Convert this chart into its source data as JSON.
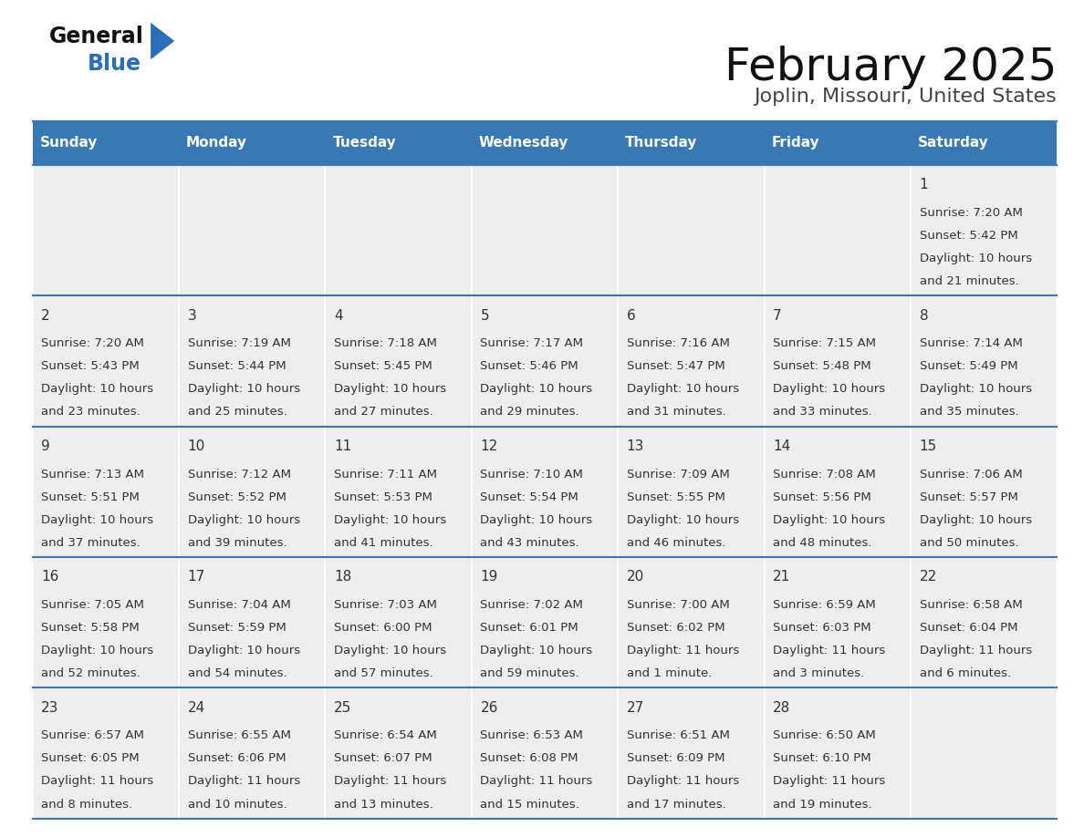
{
  "title": "February 2025",
  "subtitle": "Joplin, Missouri, United States",
  "days_of_week": [
    "Sunday",
    "Monday",
    "Tuesday",
    "Wednesday",
    "Thursday",
    "Friday",
    "Saturday"
  ],
  "header_bg_color": "#3878b4",
  "header_text_color": "#ffffff",
  "cell_bg_color": "#eeeeee",
  "cell_bg_color_white": "#ffffff",
  "grid_line_color": "#3878b4",
  "day_number_color": "#333333",
  "cell_text_color": "#333333",
  "title_color": "#111111",
  "subtitle_color": "#444444",
  "logo_general_color": "#111111",
  "logo_blue_color": "#2a6ebb",
  "calendar_data": [
    {
      "day": 1,
      "col": 6,
      "row": 0,
      "sunrise": "7:20 AM",
      "sunset": "5:42 PM",
      "daylight_h": "10 hours",
      "daylight_m": "and 21 minutes."
    },
    {
      "day": 2,
      "col": 0,
      "row": 1,
      "sunrise": "7:20 AM",
      "sunset": "5:43 PM",
      "daylight_h": "10 hours",
      "daylight_m": "and 23 minutes."
    },
    {
      "day": 3,
      "col": 1,
      "row": 1,
      "sunrise": "7:19 AM",
      "sunset": "5:44 PM",
      "daylight_h": "10 hours",
      "daylight_m": "and 25 minutes."
    },
    {
      "day": 4,
      "col": 2,
      "row": 1,
      "sunrise": "7:18 AM",
      "sunset": "5:45 PM",
      "daylight_h": "10 hours",
      "daylight_m": "and 27 minutes."
    },
    {
      "day": 5,
      "col": 3,
      "row": 1,
      "sunrise": "7:17 AM",
      "sunset": "5:46 PM",
      "daylight_h": "10 hours",
      "daylight_m": "and 29 minutes."
    },
    {
      "day": 6,
      "col": 4,
      "row": 1,
      "sunrise": "7:16 AM",
      "sunset": "5:47 PM",
      "daylight_h": "10 hours",
      "daylight_m": "and 31 minutes."
    },
    {
      "day": 7,
      "col": 5,
      "row": 1,
      "sunrise": "7:15 AM",
      "sunset": "5:48 PM",
      "daylight_h": "10 hours",
      "daylight_m": "and 33 minutes."
    },
    {
      "day": 8,
      "col": 6,
      "row": 1,
      "sunrise": "7:14 AM",
      "sunset": "5:49 PM",
      "daylight_h": "10 hours",
      "daylight_m": "and 35 minutes."
    },
    {
      "day": 9,
      "col": 0,
      "row": 2,
      "sunrise": "7:13 AM",
      "sunset": "5:51 PM",
      "daylight_h": "10 hours",
      "daylight_m": "and 37 minutes."
    },
    {
      "day": 10,
      "col": 1,
      "row": 2,
      "sunrise": "7:12 AM",
      "sunset": "5:52 PM",
      "daylight_h": "10 hours",
      "daylight_m": "and 39 minutes."
    },
    {
      "day": 11,
      "col": 2,
      "row": 2,
      "sunrise": "7:11 AM",
      "sunset": "5:53 PM",
      "daylight_h": "10 hours",
      "daylight_m": "and 41 minutes."
    },
    {
      "day": 12,
      "col": 3,
      "row": 2,
      "sunrise": "7:10 AM",
      "sunset": "5:54 PM",
      "daylight_h": "10 hours",
      "daylight_m": "and 43 minutes."
    },
    {
      "day": 13,
      "col": 4,
      "row": 2,
      "sunrise": "7:09 AM",
      "sunset": "5:55 PM",
      "daylight_h": "10 hours",
      "daylight_m": "and 46 minutes."
    },
    {
      "day": 14,
      "col": 5,
      "row": 2,
      "sunrise": "7:08 AM",
      "sunset": "5:56 PM",
      "daylight_h": "10 hours",
      "daylight_m": "and 48 minutes."
    },
    {
      "day": 15,
      "col": 6,
      "row": 2,
      "sunrise": "7:06 AM",
      "sunset": "5:57 PM",
      "daylight_h": "10 hours",
      "daylight_m": "and 50 minutes."
    },
    {
      "day": 16,
      "col": 0,
      "row": 3,
      "sunrise": "7:05 AM",
      "sunset": "5:58 PM",
      "daylight_h": "10 hours",
      "daylight_m": "and 52 minutes."
    },
    {
      "day": 17,
      "col": 1,
      "row": 3,
      "sunrise": "7:04 AM",
      "sunset": "5:59 PM",
      "daylight_h": "10 hours",
      "daylight_m": "and 54 minutes."
    },
    {
      "day": 18,
      "col": 2,
      "row": 3,
      "sunrise": "7:03 AM",
      "sunset": "6:00 PM",
      "daylight_h": "10 hours",
      "daylight_m": "and 57 minutes."
    },
    {
      "day": 19,
      "col": 3,
      "row": 3,
      "sunrise": "7:02 AM",
      "sunset": "6:01 PM",
      "daylight_h": "10 hours",
      "daylight_m": "and 59 minutes."
    },
    {
      "day": 20,
      "col": 4,
      "row": 3,
      "sunrise": "7:00 AM",
      "sunset": "6:02 PM",
      "daylight_h": "11 hours",
      "daylight_m": "and 1 minute."
    },
    {
      "day": 21,
      "col": 5,
      "row": 3,
      "sunrise": "6:59 AM",
      "sunset": "6:03 PM",
      "daylight_h": "11 hours",
      "daylight_m": "and 3 minutes."
    },
    {
      "day": 22,
      "col": 6,
      "row": 3,
      "sunrise": "6:58 AM",
      "sunset": "6:04 PM",
      "daylight_h": "11 hours",
      "daylight_m": "and 6 minutes."
    },
    {
      "day": 23,
      "col": 0,
      "row": 4,
      "sunrise": "6:57 AM",
      "sunset": "6:05 PM",
      "daylight_h": "11 hours",
      "daylight_m": "and 8 minutes."
    },
    {
      "day": 24,
      "col": 1,
      "row": 4,
      "sunrise": "6:55 AM",
      "sunset": "6:06 PM",
      "daylight_h": "11 hours",
      "daylight_m": "and 10 minutes."
    },
    {
      "day": 25,
      "col": 2,
      "row": 4,
      "sunrise": "6:54 AM",
      "sunset": "6:07 PM",
      "daylight_h": "11 hours",
      "daylight_m": "and 13 minutes."
    },
    {
      "day": 26,
      "col": 3,
      "row": 4,
      "sunrise": "6:53 AM",
      "sunset": "6:08 PM",
      "daylight_h": "11 hours",
      "daylight_m": "and 15 minutes."
    },
    {
      "day": 27,
      "col": 4,
      "row": 4,
      "sunrise": "6:51 AM",
      "sunset": "6:09 PM",
      "daylight_h": "11 hours",
      "daylight_m": "and 17 minutes."
    },
    {
      "day": 28,
      "col": 5,
      "row": 4,
      "sunrise": "6:50 AM",
      "sunset": "6:10 PM",
      "daylight_h": "11 hours",
      "daylight_m": "and 19 minutes."
    }
  ],
  "num_rows": 5,
  "num_cols": 7
}
